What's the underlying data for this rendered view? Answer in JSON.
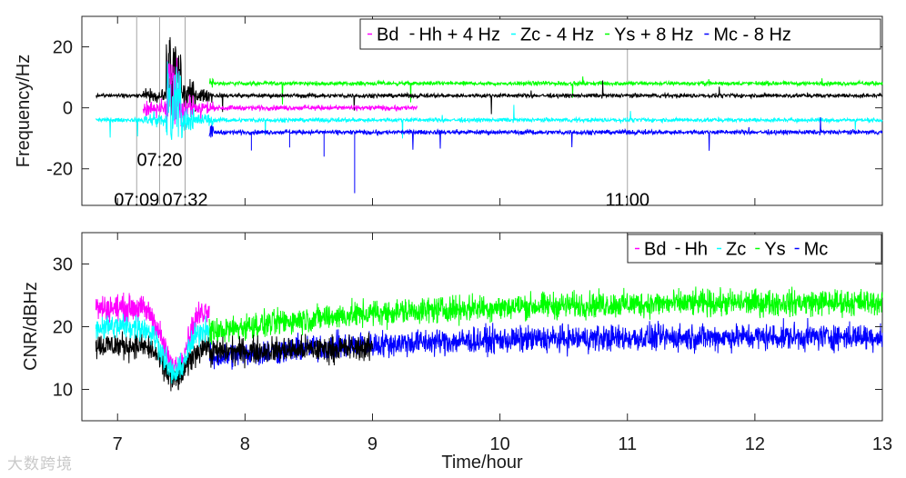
{
  "watermark": "大数跨境",
  "colors": {
    "Bd": "#ff00ff",
    "Hh": "#000000",
    "Zc": "#00ffff",
    "Ys": "#00ff00",
    "Mc": "#0000ff",
    "vline": "#a6a6a6"
  },
  "chart_data": [
    {
      "type": "line",
      "panel": "top",
      "ylabel": "Frequency/Hz",
      "xlim": [
        6.72,
        13
      ],
      "ylim": [
        -32,
        30
      ],
      "yticks": [
        -20,
        0,
        20
      ],
      "xticks": [
        7,
        8,
        9,
        10,
        11,
        12,
        13
      ],
      "xtick_labels_shown": false,
      "legend": "top-right",
      "series": [
        {
          "name": "Bd",
          "key": "Bd",
          "x_range": [
            7.2,
            9.35
          ],
          "level": 0,
          "noise": 1.2
        },
        {
          "name": "Hh + 4 Hz",
          "key": "Hh",
          "x_range": [
            6.83,
            13
          ],
          "level": 4,
          "noise": 1.0
        },
        {
          "name": "Zc - 4 Hz",
          "key": "Zc",
          "x_range": [
            6.83,
            13
          ],
          "level": -4,
          "noise": 1.0
        },
        {
          "name": "Ys + 8 Hz",
          "key": "Ys",
          "x_range": [
            7.72,
            13
          ],
          "level": 8,
          "noise": 1.0
        },
        {
          "name": "Mc - 8 Hz",
          "key": "Mc",
          "x_range": [
            7.72,
            13
          ],
          "level": -8,
          "noise": 1.1
        }
      ],
      "annotations": [
        {
          "text": "07:09",
          "x": 7.15,
          "y": -30
        },
        {
          "text": "07:20",
          "x": 7.33,
          "y": -17
        },
        {
          "text": "07:32",
          "x": 7.53,
          "y": -30
        },
        {
          "text": "11:00",
          "x": 11.0,
          "y": -30
        }
      ],
      "vlines": [
        7.15,
        7.33,
        7.53,
        11.0
      ]
    },
    {
      "type": "line",
      "panel": "bottom",
      "xlabel": "Time/hour",
      "ylabel": "CNR/dBHz",
      "xlim": [
        6.72,
        13
      ],
      "ylim": [
        5,
        35
      ],
      "yticks": [
        10,
        20,
        30
      ],
      "xticks": [
        7,
        8,
        9,
        10,
        11,
        12,
        13
      ],
      "legend": "top-right",
      "series": [
        {
          "name": "Bd",
          "key": "Bd",
          "x_range": [
            6.83,
            7.72
          ],
          "start": 23,
          "dip": 13.5
        },
        {
          "name": "Hh",
          "key": "Hh",
          "x_range": [
            6.83,
            9.0
          ],
          "start": 17,
          "dip": 11.5
        },
        {
          "name": "Zc",
          "key": "Zc",
          "x_range": [
            6.83,
            7.72
          ],
          "start": 20,
          "dip": 12.5
        },
        {
          "name": "Ys",
          "key": "Ys",
          "x_range": [
            7.72,
            13
          ],
          "start": 19,
          "end": 24
        },
        {
          "name": "Mc",
          "key": "Mc",
          "x_range": [
            7.72,
            13
          ],
          "start": 15,
          "end": 18.5
        }
      ]
    }
  ]
}
